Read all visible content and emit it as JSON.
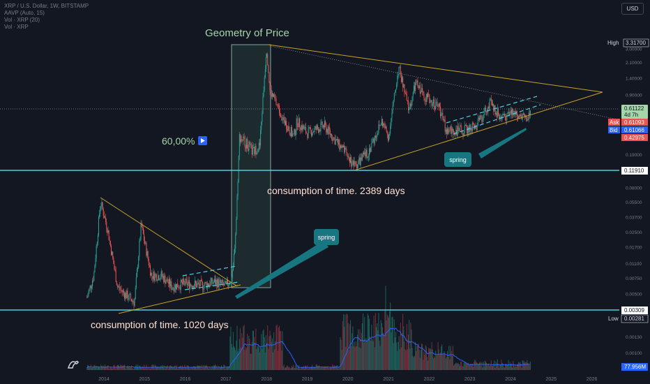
{
  "legend": {
    "line1": "XRP / U.S. Dollar, 1W, BITSTAMP",
    "line2": "AAVP (Auto, 15)",
    "line3": "Vol · XRP (20)",
    "line4": "Vol · XRP"
  },
  "currency_button": "USD",
  "colors": {
    "up": "#26a69a",
    "down": "#ef5350",
    "trend": "#c9a227",
    "level": "#4dd0e1",
    "box": "#37474f"
  },
  "chart_data": {
    "type": "candlestick",
    "title": "Geometry of Price",
    "scale": "log",
    "x_ticks": [
      "2014",
      "2015",
      "2016",
      "2017",
      "2018",
      "2019",
      "2020",
      "2021",
      "2022",
      "2023",
      "2024",
      "2025",
      "2026"
    ],
    "y_ticks": [
      "3.00000",
      "2.10000",
      "1.40000",
      "0.90000",
      "0.43000",
      "0.30000",
      "0.19000",
      "0.08000",
      "0.05500",
      "0.03700",
      "0.02500",
      "0.01700",
      "0.01100",
      "0.00750",
      "0.00500",
      "0.00130",
      "0.00100"
    ],
    "price_labels": {
      "high_label": "High",
      "high_value": "3.31700",
      "current": "0.61122",
      "countdown": "4d 7h",
      "ask_label": "Ask",
      "ask": "0.61093",
      "bid_label": "Bid",
      "bid": "0.61066",
      "alt": "0.42975",
      "level_upper": "0.11910",
      "level_lower": "0.00309",
      "low_label": "Low",
      "low_value": "0.00281",
      "volume": "77.956M"
    },
    "annotations": {
      "percent": "60,00%",
      "consumption_2389": "consumption of time. 2389 days",
      "consumption_1020": "consumption of time. 1020 days",
      "spring_upper": "spring",
      "spring_lower": "spring"
    },
    "price_anchors": [
      [
        "2013-08",
        0.0045
      ],
      [
        "2013-10",
        0.008
      ],
      [
        "2013-12",
        0.055
      ],
      [
        "2014-02",
        0.028
      ],
      [
        "2014-05",
        0.006
      ],
      [
        "2014-07",
        0.005
      ],
      [
        "2014-10",
        0.004
      ],
      [
        "2014-12",
        0.03
      ],
      [
        "2015-03",
        0.008
      ],
      [
        "2015-06",
        0.008
      ],
      [
        "2015-09",
        0.006
      ],
      [
        "2016-01",
        0.0065
      ],
      [
        "2016-06",
        0.0062
      ],
      [
        "2016-10",
        0.0068
      ],
      [
        "2017-01",
        0.006
      ],
      [
        "2017-03",
        0.008
      ],
      [
        "2017-04",
        0.03
      ],
      [
        "2017-05",
        0.3
      ],
      [
        "2017-06",
        0.28
      ],
      [
        "2017-09",
        0.2
      ],
      [
        "2017-11",
        0.24
      ],
      [
        "2018-01",
        3.2
      ],
      [
        "2018-02",
        1.0
      ],
      [
        "2018-04",
        0.7
      ],
      [
        "2018-06",
        0.47
      ],
      [
        "2018-09",
        0.3
      ],
      [
        "2018-10",
        0.45
      ],
      [
        "2019-01",
        0.33
      ],
      [
        "2019-06",
        0.4
      ],
      [
        "2019-12",
        0.2
      ],
      [
        "2020-03",
        0.14
      ],
      [
        "2020-07",
        0.2
      ],
      [
        "2020-11",
        0.45
      ],
      [
        "2021-01",
        0.3
      ],
      [
        "2021-04",
        1.85
      ],
      [
        "2021-07",
        0.6
      ],
      [
        "2021-09",
        1.2
      ],
      [
        "2021-12",
        0.85
      ],
      [
        "2022-04",
        0.65
      ],
      [
        "2022-06",
        0.35
      ],
      [
        "2022-11",
        0.35
      ],
      [
        "2023-03",
        0.4
      ],
      [
        "2023-07",
        0.72
      ],
      [
        "2023-10",
        0.5
      ],
      [
        "2024-01",
        0.55
      ],
      [
        "2024-04",
        0.55
      ],
      [
        "2024-06",
        0.47
      ],
      [
        "2024-07",
        0.58
      ]
    ]
  }
}
